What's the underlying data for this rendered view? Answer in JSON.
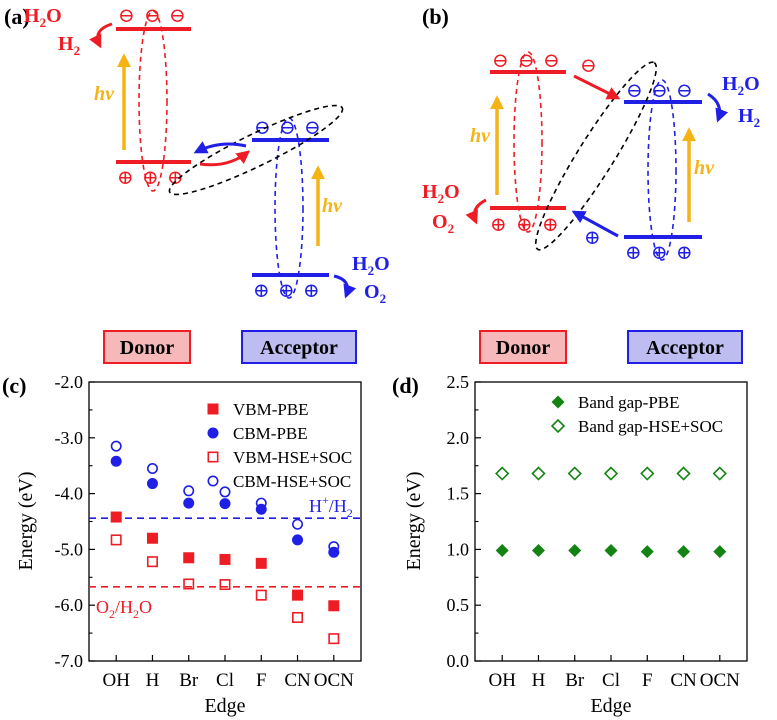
{
  "colors": {
    "donor": "#ee1c24",
    "acceptor": "#1f1fe6",
    "photon": "#f5b316",
    "green": "#138413",
    "donor_box": "#f6b8b8",
    "acceptor_box": "#bdbdf2",
    "black": "#000000"
  },
  "symbols": {
    "electron": "⊖",
    "hole": "⊕"
  },
  "panels": {
    "a": {
      "label": "(a)"
    },
    "b": {
      "label": "(b)"
    },
    "c": {
      "label": "(c)"
    },
    "d": {
      "label": "(d)"
    }
  },
  "diagram": {
    "hv": "hv",
    "h2o_main": "H",
    "h2o_sub": "2",
    "h2o_tail": "O",
    "h2_main": "H",
    "h2_sub": "2",
    "o2_main": "O",
    "o2_sub": "2",
    "donor_label": "Donor",
    "acceptor_label": "Acceptor"
  },
  "chart_data": [
    {
      "type": "scatter",
      "panel": "c",
      "xlabel": "Edge",
      "ylabel": "Energy (eV)",
      "categories": [
        "OH",
        "H",
        "Br",
        "Cl",
        "F",
        "CN",
        "OCN"
      ],
      "ylim": [
        -7.0,
        -2.0
      ],
      "yticks": [
        "-2.0",
        "-3.0",
        "-4.0",
        "-5.0",
        "-6.0",
        "-7.0"
      ],
      "legend_position": "top-right",
      "series": [
        {
          "name": "VBM-PBE",
          "marker": "filled-square",
          "color": "#ee1c24",
          "values": [
            -4.42,
            -4.8,
            -5.15,
            -5.18,
            -5.25,
            -5.82,
            -6.01
          ]
        },
        {
          "name": "CBM-PBE",
          "marker": "filled-circle",
          "color": "#1f1fe6",
          "values": [
            -3.42,
            -3.82,
            -4.17,
            -4.18,
            -4.28,
            -4.83,
            -5.05
          ]
        },
        {
          "name": "VBM-HSE+SOC",
          "marker": "open-square",
          "color": "#ee1c24",
          "values": [
            -4.83,
            -5.22,
            -5.62,
            -5.63,
            -5.82,
            -6.22,
            -6.6
          ]
        },
        {
          "name": "CBM-HSE+SOC",
          "marker": "open-circle",
          "color": "#1f1fe6",
          "values": [
            -3.15,
            -3.55,
            -3.95,
            -3.97,
            -4.17,
            -4.55,
            -4.95
          ]
        }
      ],
      "reference_lines": [
        {
          "value": -4.44,
          "color": "#1f1fe6",
          "label_base": "H",
          "label_sup": "+",
          "label_sep": "/H",
          "label_sub": "2"
        },
        {
          "value": -5.67,
          "color": "#ee1c24",
          "label_base": "O",
          "label_sub": "2",
          "label_tail": "/H",
          "label_sub2": "2",
          "label_end": "O"
        }
      ]
    },
    {
      "type": "scatter",
      "panel": "d",
      "xlabel": "Edge",
      "ylabel": "Energy (eV)",
      "categories": [
        "OH",
        "H",
        "Br",
        "Cl",
        "F",
        "CN",
        "OCN"
      ],
      "ylim": [
        0.0,
        2.5
      ],
      "yticks": [
        "2.5",
        "2.0",
        "1.5",
        "1.0",
        "0.5",
        "0.0"
      ],
      "legend_position": "top-right",
      "series": [
        {
          "name": "Band gap-PBE",
          "marker": "filled-diamond",
          "color": "#138413",
          "values": [
            0.99,
            0.99,
            0.99,
            0.99,
            0.98,
            0.98,
            0.98
          ]
        },
        {
          "name": "Band gap-HSE+SOC",
          "marker": "open-diamond",
          "color": "#138413",
          "values": [
            1.68,
            1.68,
            1.68,
            1.68,
            1.68,
            1.68,
            1.68
          ]
        }
      ]
    }
  ]
}
